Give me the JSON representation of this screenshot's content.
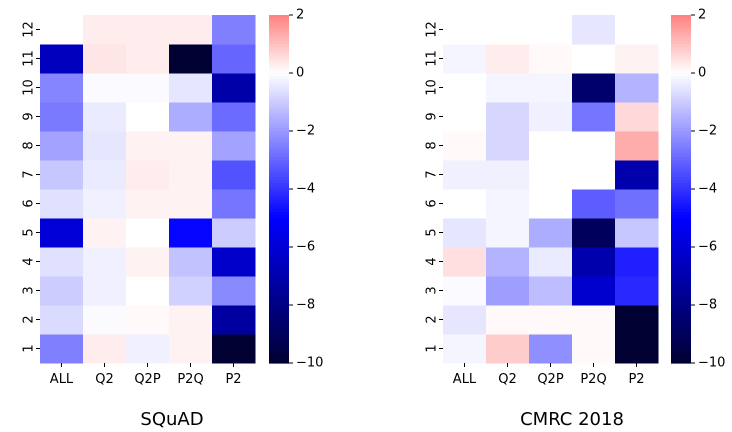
{
  "chart_data": [
    {
      "type": "heatmap",
      "title": "SQuAD",
      "xlabel": "",
      "ylabel": "",
      "x_categories": [
        "ALL",
        "Q2",
        "Q2P",
        "P2Q",
        "P2"
      ],
      "y_categories": [
        "1",
        "2",
        "3",
        "4",
        "5",
        "6",
        "7",
        "8",
        "9",
        "10",
        "11",
        "12"
      ],
      "values": [
        [
          -2.5,
          0.3,
          -0.3,
          0.2,
          -10
        ],
        [
          -0.7,
          -0.1,
          0.1,
          0.2,
          -7.3
        ],
        [
          -1.0,
          -0.3,
          0.0,
          -0.9,
          -2.3
        ],
        [
          -0.6,
          -0.3,
          0.2,
          -1.2,
          -6.3
        ],
        [
          -6.0,
          0.2,
          0.0,
          -4.9,
          -1.0
        ],
        [
          -0.6,
          -0.3,
          0.2,
          0.2,
          -2.7
        ],
        [
          -1.1,
          -0.4,
          0.3,
          0.2,
          -3.4
        ],
        [
          -1.8,
          -0.5,
          0.2,
          0.2,
          -1.8
        ],
        [
          -2.6,
          -0.4,
          0.0,
          -1.6,
          -2.9
        ],
        [
          -2.4,
          -0.1,
          -0.1,
          -0.5,
          -7.1
        ],
        [
          -6.6,
          0.4,
          0.3,
          -10,
          -3.0
        ],
        [
          0.0,
          0.3,
          0.3,
          0.3,
          -2.5
        ]
      ],
      "colorbar": {
        "ticks": [
          2,
          0,
          -2,
          -4,
          -6,
          -8,
          -10
        ],
        "range": [
          -10,
          2
        ]
      },
      "colors": {
        "min": "#000033",
        "neg": "#0000ff",
        "zero": "#ffffff",
        "pos": "#ff8080"
      }
    },
    {
      "type": "heatmap",
      "title": "CMRC 2018",
      "xlabel": "",
      "ylabel": "",
      "x_categories": [
        "ALL",
        "Q2",
        "Q2P",
        "P2Q",
        "P2"
      ],
      "y_categories": [
        "1",
        "2",
        "3",
        "4",
        "5",
        "6",
        "7",
        "8",
        "9",
        "10",
        "11",
        "12"
      ],
      "values": [
        [
          -0.2,
          0.8,
          -2.2,
          0.1,
          -10
        ],
        [
          -0.5,
          0.1,
          0.1,
          0.1,
          -10
        ],
        [
          -0.1,
          -1.9,
          -1.3,
          -6.2,
          -4.2
        ],
        [
          0.5,
          -1.5,
          -0.4,
          -7.0,
          -4.4
        ],
        [
          -0.5,
          -0.2,
          -1.6,
          -9.0,
          -1.1
        ],
        [
          0.0,
          -0.2,
          0.0,
          -3.2,
          -2.8
        ],
        [
          -0.3,
          -0.3,
          0.0,
          0.0,
          -7.0
        ],
        [
          0.1,
          -0.8,
          0.0,
          0.0,
          1.3
        ],
        [
          0.0,
          -0.8,
          -0.3,
          -2.7,
          0.6
        ],
        [
          0.0,
          -0.2,
          -0.2,
          -8.6,
          -1.5
        ],
        [
          -0.2,
          0.3,
          0.1,
          0.0,
          0.2
        ],
        [
          0.0,
          0.0,
          0.0,
          -0.5,
          0.0
        ]
      ],
      "colorbar": {
        "ticks": [
          2,
          0,
          -2,
          -4,
          -6,
          -8,
          -10
        ],
        "range": [
          -10,
          2
        ]
      },
      "colors": {
        "min": "#000033",
        "neg": "#0000ff",
        "zero": "#ffffff",
        "pos": "#ff8080"
      }
    }
  ]
}
